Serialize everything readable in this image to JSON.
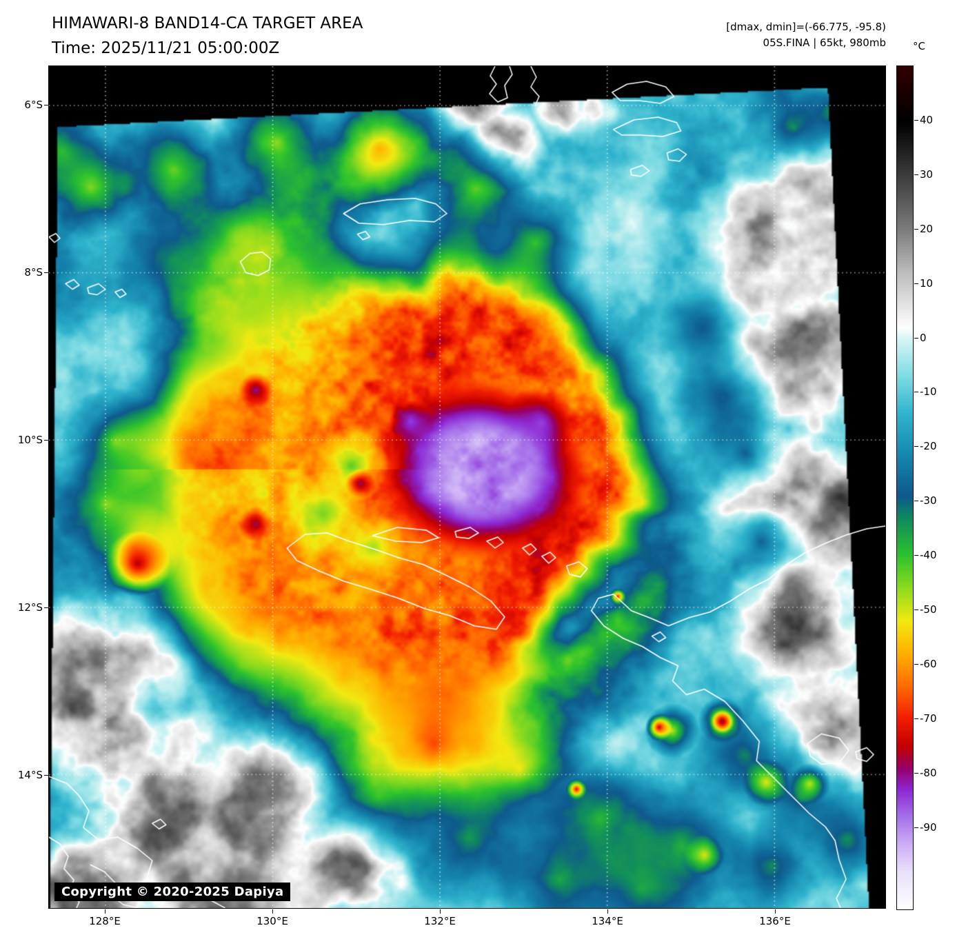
{
  "header": {
    "title": "HIMAWARI-8 BAND14-CA TARGET AREA",
    "time_line": "Time: 2025/11/21 05:00:00Z",
    "annotation_line1": "[dmax, dmin]=(-66.775, -95.8)",
    "annotation_line2": "05S.FINA | 65kt, 980mb"
  },
  "storm": {
    "id": "05S.FINA",
    "intensity": "65kt",
    "pressure": "980mb",
    "dmax": "-66.775",
    "dmin": "-95.8"
  },
  "map": {
    "lat_ticks": [
      "6°S",
      "8°S",
      "10°S",
      "12°S",
      "14°S"
    ],
    "lon_ticks": [
      "128°E",
      "130°E",
      "132°E",
      "134°E",
      "136°E"
    ],
    "copyright": "Copyright © 2020-2025 Dapiya",
    "grid_color": "#ffffff",
    "coastline_color": "#ffffff",
    "nodata_color": "#000000"
  },
  "colorbar": {
    "unit": "°C",
    "tick_labels": [
      "40",
      "30",
      "20",
      "10",
      "0",
      "-10",
      "-20",
      "-30",
      "-40",
      "-50",
      "-60",
      "-70",
      "-80",
      "-90"
    ],
    "tick_values": [
      40,
      30,
      20,
      10,
      0,
      -10,
      -20,
      -30,
      -40,
      -50,
      -60,
      -70,
      -80,
      -90
    ],
    "range": {
      "max": 50,
      "min": -105
    },
    "stops": [
      [
        50,
        "#320000"
      ],
      [
        43,
        "#100000"
      ],
      [
        40,
        "#000000"
      ],
      [
        30,
        "#3c3c3c"
      ],
      [
        20,
        "#7d7d7d"
      ],
      [
        12,
        "#bebebe"
      ],
      [
        5,
        "#ebebeb"
      ],
      [
        2,
        "#ffffff"
      ],
      [
        0,
        "#d8f6f6"
      ],
      [
        -7,
        "#7fdce4"
      ],
      [
        -14,
        "#2fb4cd"
      ],
      [
        -22,
        "#1585ad"
      ],
      [
        -29,
        "#0e5a8c"
      ],
      [
        -33,
        "#108a60"
      ],
      [
        -40,
        "#2dc32d"
      ],
      [
        -46,
        "#8edc1e"
      ],
      [
        -52,
        "#f2ea12"
      ],
      [
        -58,
        "#ffb000"
      ],
      [
        -64,
        "#ff6c00"
      ],
      [
        -70,
        "#f21d00"
      ],
      [
        -75,
        "#c40000"
      ],
      [
        -79,
        "#960066"
      ],
      [
        -83,
        "#8c28d2"
      ],
      [
        -88,
        "#a671ea"
      ],
      [
        -93,
        "#ccaef5"
      ],
      [
        -98,
        "#e9e0fb"
      ],
      [
        -105,
        "#ffffff"
      ]
    ]
  }
}
